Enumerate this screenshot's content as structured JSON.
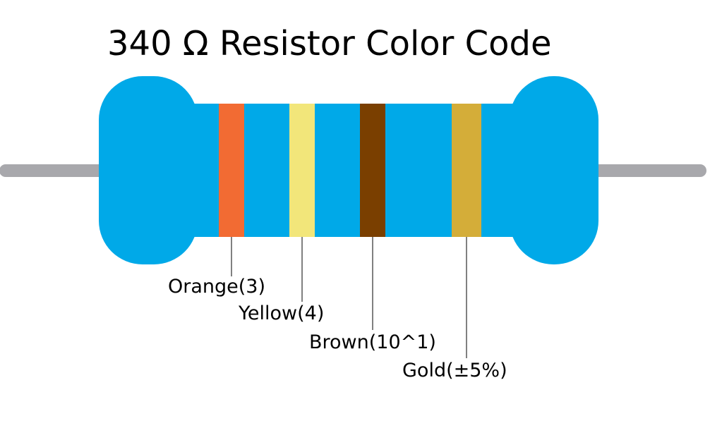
{
  "title": "340 Ω Resistor Color Code",
  "colors": {
    "body": "#00A9E8",
    "lead": "#A8A8AC",
    "leader_line": "#000000"
  },
  "bands": [
    {
      "label": "Orange(3)",
      "color": "#F26B33"
    },
    {
      "label": "Yellow(4)",
      "color": "#F2E67A"
    },
    {
      "label": "Brown(10^1)",
      "color": "#7A3F00"
    },
    {
      "label": "Gold(±5%)",
      "color": "#D4AD39"
    }
  ]
}
